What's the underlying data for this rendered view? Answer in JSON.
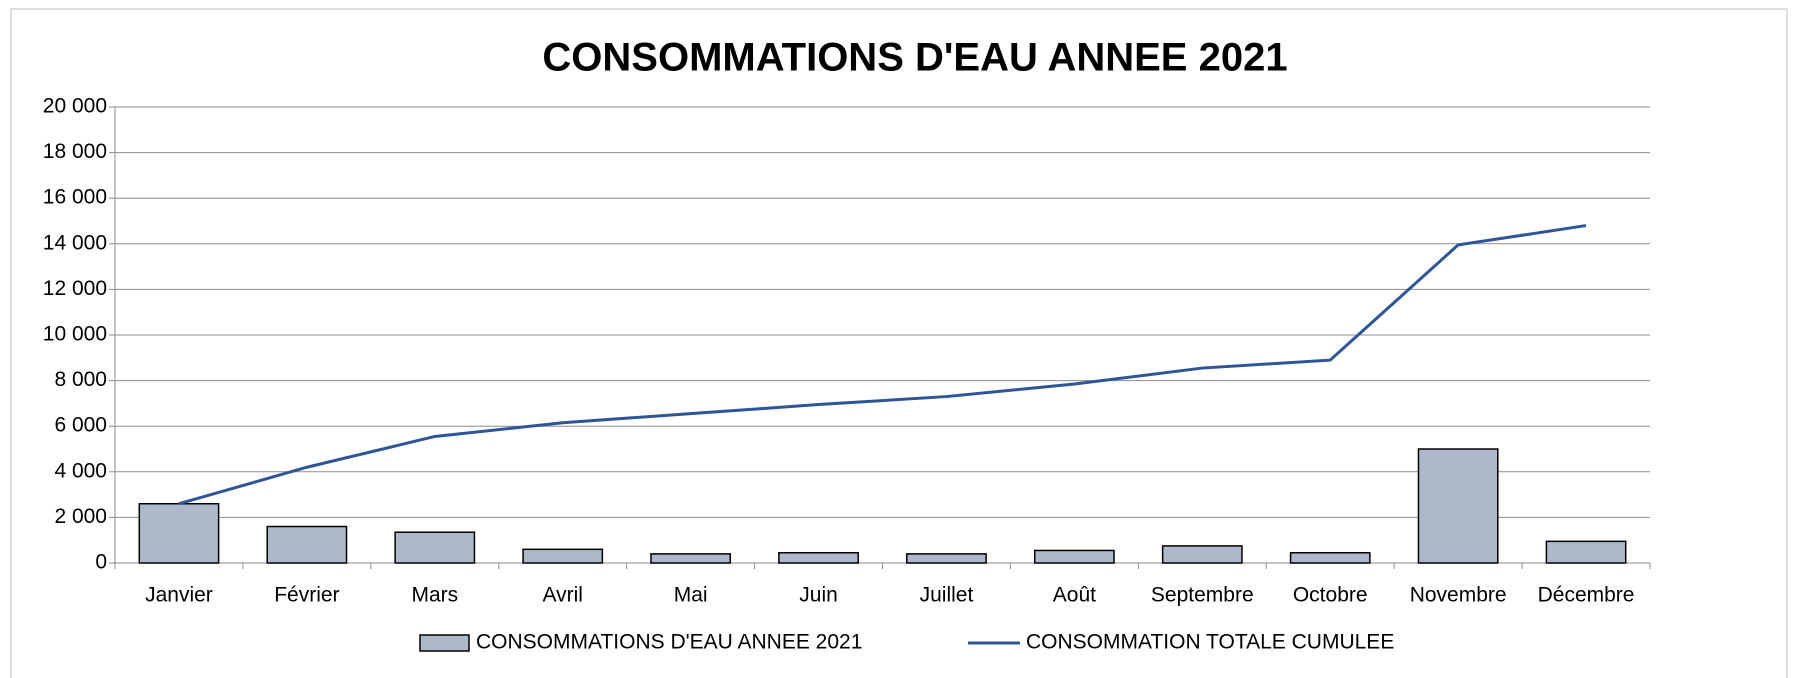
{
  "chart_data": {
    "type": "bar+line",
    "title": "CONSOMMATIONS D'EAU ANNEE 2021",
    "categories": [
      "Janvier",
      "Février",
      "Mars",
      "Avril",
      "Mai",
      "Juin",
      "Juillet",
      "Août",
      "Septembre",
      "Octobre",
      "Novembre",
      "Décembre"
    ],
    "series": [
      {
        "name": "CONSOMMATIONS D'EAU ANNEE 2021",
        "type": "bar",
        "color": "#adb9ca",
        "values": [
          2600,
          1600,
          1350,
          600,
          400,
          450,
          400,
          550,
          750,
          450,
          5000,
          950
        ]
      },
      {
        "name": "CONSOMMATION TOTALE CUMULEE",
        "type": "line",
        "color": "#2f5597",
        "values": [
          2600,
          4200,
          5550,
          6150,
          6550,
          6950,
          7300,
          7850,
          8550,
          8900,
          13950,
          14800
        ]
      }
    ],
    "ylim": [
      0,
      20000
    ],
    "yticks": [
      0,
      {
        "value": 2000,
        "label": "2 000"
      },
      {
        "value": 4000,
        "label": "4 000"
      },
      {
        "value": 6000,
        "label": "6 000"
      },
      {
        "value": 8000,
        "label": "8 000"
      },
      {
        "value": 10000,
        "label": "10 000"
      },
      {
        "value": 12000,
        "label": "12 000"
      },
      {
        "value": 14000,
        "label": "14 000"
      },
      {
        "value": 16000,
        "label": "16 000"
      },
      {
        "value": 18000,
        "label": "18 000"
      },
      {
        "value": 20000,
        "label": "20 000"
      }
    ],
    "grid": true,
    "legend": "bottom"
  }
}
